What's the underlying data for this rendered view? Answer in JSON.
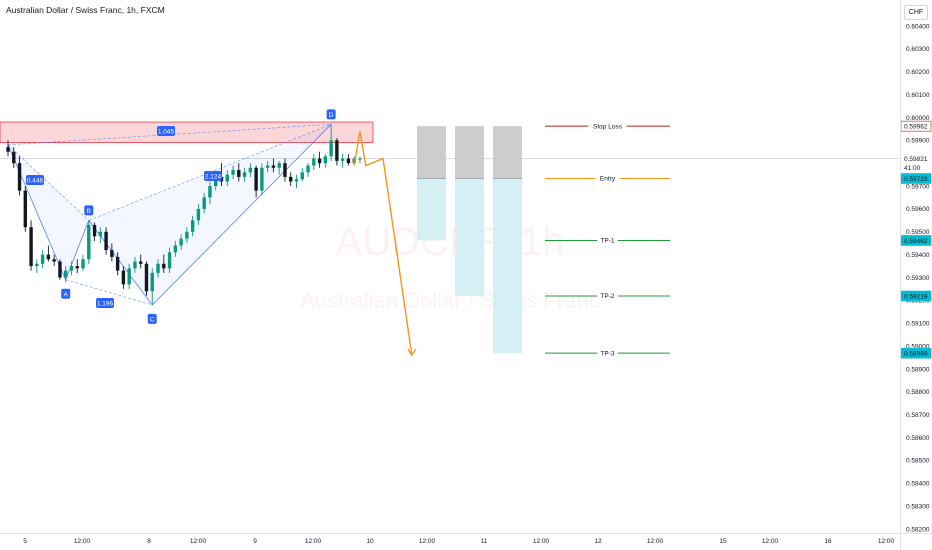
{
  "symbol_title": "Australian Dollar / Swiss Franc, 1h, FXCM",
  "currency": "CHF",
  "watermark": {
    "ticker": "AUDCHF, 1h",
    "name": "Australian Dollar / Swiss Franc"
  },
  "colors": {
    "bull": "#089981",
    "bear": "#131722",
    "pattern": "#2962ff",
    "zone": "#f23645",
    "arrow": "#f7931a",
    "stop": "#b71c1c",
    "entry": "#f7931a",
    "target": "#1b9e3a",
    "risk_box": "#c8c8c8",
    "reward_box": "#d4f0f5"
  },
  "chart_data": {
    "type": "candlestick",
    "title": "Australian Dollar / Swiss Franc, 1h, FXCM",
    "y_range": [
      0.582,
      0.605
    ],
    "y_ticks": [
      "0.60400",
      "0.60300",
      "0.60200",
      "0.60100",
      "0.60000",
      "0.59900",
      "0.59800",
      "0.59700",
      "0.59600",
      "0.59500",
      "0.59400",
      "0.59300",
      "0.59200",
      "0.59100",
      "0.59000",
      "0.58900",
      "0.58800",
      "0.58700",
      "0.58600",
      "0.58500",
      "0.58400",
      "0.58300",
      "0.58200"
    ],
    "x_ticks": [
      "5",
      "12:00",
      "8",
      "12:00",
      "9",
      "12:00",
      "10",
      "12:00",
      "11",
      "12:00",
      "12",
      "12:00",
      "15",
      "12:00",
      "16",
      "12:00"
    ],
    "price_labels": [
      {
        "text": "0.59962",
        "price": 0.59962,
        "style": "stop"
      },
      {
        "text": "0.59821",
        "price": 0.59821,
        "style": "last"
      },
      {
        "text": "41:00",
        "price": 0.5978,
        "style": "last"
      },
      {
        "text": "0.59733",
        "price": 0.59733,
        "style": "entry"
      },
      {
        "text": "0.59462",
        "price": 0.59462,
        "style": "tp"
      },
      {
        "text": "0.59219",
        "price": 0.59219,
        "style": "tp"
      },
      {
        "text": "0.58969",
        "price": 0.58969,
        "style": "tp"
      }
    ],
    "candles": [
      [
        0.5987,
        0.599,
        0.5983,
        0.5985
      ],
      [
        0.5985,
        0.5987,
        0.5978,
        0.598
      ],
      [
        0.598,
        0.5983,
        0.5966,
        0.5968
      ],
      [
        0.5968,
        0.597,
        0.595,
        0.5952
      ],
      [
        0.5952,
        0.5955,
        0.5933,
        0.5935
      ],
      [
        0.5935,
        0.5938,
        0.5932,
        0.5936
      ],
      [
        0.5936,
        0.5942,
        0.5934,
        0.594
      ],
      [
        0.594,
        0.5944,
        0.5937,
        0.5938
      ],
      [
        0.5938,
        0.594,
        0.5935,
        0.5937
      ],
      [
        0.5937,
        0.5938,
        0.5929,
        0.593
      ],
      [
        0.593,
        0.5935,
        0.5928,
        0.5933
      ],
      [
        0.5933,
        0.5937,
        0.5931,
        0.5935
      ],
      [
        0.5935,
        0.5938,
        0.5932,
        0.5934
      ],
      [
        0.5934,
        0.594,
        0.5933,
        0.5938
      ],
      [
        0.5938,
        0.5955,
        0.5936,
        0.5953
      ],
      [
        0.5953,
        0.5954,
        0.5946,
        0.5948
      ],
      [
        0.5948,
        0.5952,
        0.5945,
        0.595
      ],
      [
        0.595,
        0.5952,
        0.594,
        0.5942
      ],
      [
        0.5942,
        0.5945,
        0.5937,
        0.5939
      ],
      [
        0.5939,
        0.5941,
        0.5931,
        0.5933
      ],
      [
        0.5933,
        0.5935,
        0.5925,
        0.5927
      ],
      [
        0.5927,
        0.5936,
        0.5925,
        0.5934
      ],
      [
        0.5934,
        0.5939,
        0.5932,
        0.5937
      ],
      [
        0.5937,
        0.594,
        0.5934,
        0.5936
      ],
      [
        0.5936,
        0.5937,
        0.5922,
        0.5924
      ],
      [
        0.5924,
        0.5934,
        0.5918,
        0.5932
      ],
      [
        0.5932,
        0.5938,
        0.593,
        0.5936
      ],
      [
        0.5936,
        0.594,
        0.5932,
        0.5934
      ],
      [
        0.5934,
        0.5943,
        0.5932,
        0.5941
      ],
      [
        0.5941,
        0.5946,
        0.5939,
        0.5944
      ],
      [
        0.5944,
        0.5949,
        0.5942,
        0.5947
      ],
      [
        0.5947,
        0.5952,
        0.5945,
        0.595
      ],
      [
        0.595,
        0.5957,
        0.5948,
        0.5955
      ],
      [
        0.5955,
        0.5962,
        0.5953,
        0.596
      ],
      [
        0.596,
        0.5967,
        0.5958,
        0.5965
      ],
      [
        0.5965,
        0.5972,
        0.5962,
        0.597
      ],
      [
        0.597,
        0.5976,
        0.5968,
        0.5974
      ],
      [
        0.5974,
        0.598,
        0.597,
        0.5972
      ],
      [
        0.5972,
        0.5977,
        0.597,
        0.5975
      ],
      [
        0.5975,
        0.5979,
        0.5973,
        0.5977
      ],
      [
        0.5977,
        0.598,
        0.5972,
        0.5974
      ],
      [
        0.5974,
        0.5978,
        0.5972,
        0.5976
      ],
      [
        0.5976,
        0.598,
        0.5974,
        0.5978
      ],
      [
        0.5978,
        0.5979,
        0.5965,
        0.5968
      ],
      [
        0.5968,
        0.598,
        0.5966,
        0.5978
      ],
      [
        0.5978,
        0.5981,
        0.5976,
        0.5979
      ],
      [
        0.5979,
        0.5982,
        0.5976,
        0.5978
      ],
      [
        0.5978,
        0.5981,
        0.5975,
        0.598
      ],
      [
        0.598,
        0.5982,
        0.5972,
        0.5974
      ],
      [
        0.5974,
        0.5976,
        0.597,
        0.5972
      ],
      [
        0.5972,
        0.5975,
        0.5969,
        0.5973
      ],
      [
        0.5973,
        0.5978,
        0.5972,
        0.5976
      ],
      [
        0.5976,
        0.598,
        0.5974,
        0.5979
      ],
      [
        0.5979,
        0.5984,
        0.5977,
        0.5982
      ],
      [
        0.5982,
        0.5985,
        0.5978,
        0.598
      ],
      [
        0.598,
        0.5984,
        0.5978,
        0.5983
      ],
      [
        0.5983,
        0.5997,
        0.5981,
        0.599
      ],
      [
        0.599,
        0.5991,
        0.5979,
        0.5981
      ],
      [
        0.5981,
        0.5984,
        0.5978,
        0.5982
      ],
      [
        0.5982,
        0.5984,
        0.5979,
        0.598
      ],
      [
        0.598,
        0.5983,
        0.5979,
        0.5982
      ],
      [
        0.5982,
        0.5983,
        0.598,
        0.5982
      ]
    ],
    "harmonic_pattern": {
      "points": [
        {
          "label": "X",
          "index": 0,
          "price": 0.5988
        },
        {
          "label": "A",
          "index": 10,
          "price": 0.5929
        },
        {
          "label": "B",
          "index": 14,
          "price": 0.5955
        },
        {
          "label": "C",
          "index": 25,
          "price": 0.5918
        },
        {
          "label": "D",
          "index": 56,
          "price": 0.5997
        }
      ],
      "ratios": [
        {
          "text": "0.446",
          "between": [
            "X",
            "B"
          ]
        },
        {
          "text": "1.196",
          "between": [
            "A",
            "C"
          ]
        },
        {
          "text": "2.124",
          "between": [
            "B",
            "D"
          ]
        },
        {
          "text": "1.045",
          "between": [
            "X",
            "D"
          ]
        }
      ]
    },
    "prz_zone": {
      "top": 0.5998,
      "bottom": 0.5989
    },
    "projected_path": [
      {
        "index": 60,
        "price": 0.5979
      },
      {
        "index": 61,
        "price": 0.5994
      },
      {
        "index": 62,
        "price": 0.5979
      },
      {
        "index": 65,
        "price": 0.5982
      },
      {
        "index": 70,
        "price": 0.5896
      }
    ],
    "trade_levels": [
      {
        "label": "Stop Loss",
        "price": 0.59962,
        "type": "stop"
      },
      {
        "label": "Entry",
        "price": 0.59733,
        "type": "entry"
      },
      {
        "label": "TP-1",
        "price": 0.59462,
        "type": "target"
      },
      {
        "label": "TP-2",
        "price": 0.59219,
        "type": "target"
      },
      {
        "label": "TP-3",
        "price": 0.58969,
        "type": "target"
      }
    ],
    "position_boxes": [
      {
        "name": "TP-1",
        "top": 0.59962,
        "entry": 0.59733,
        "target": 0.59462
      },
      {
        "name": "TP-2",
        "top": 0.59962,
        "entry": 0.59733,
        "target": 0.59219
      },
      {
        "name": "TP-3",
        "top": 0.59962,
        "entry": 0.59733,
        "target": 0.58969
      }
    ]
  }
}
